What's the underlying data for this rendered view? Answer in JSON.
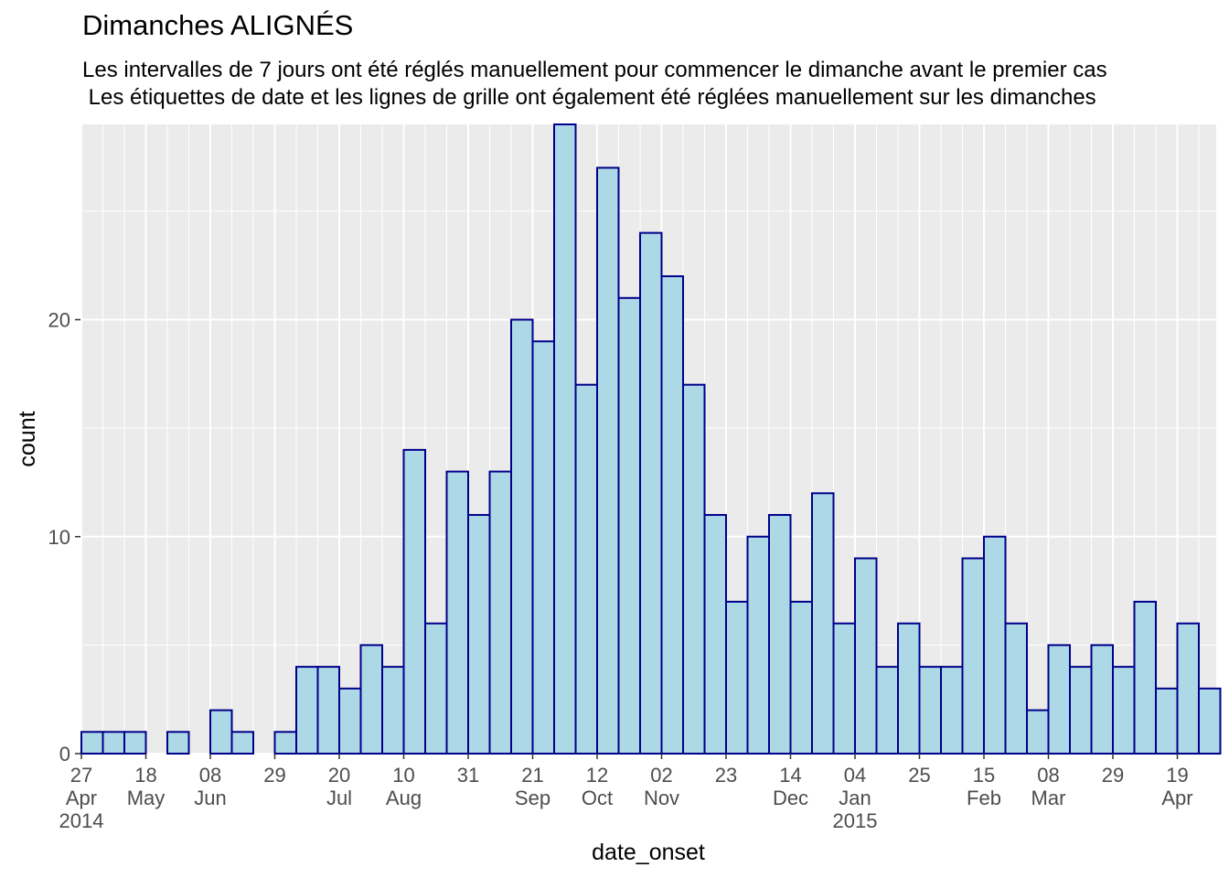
{
  "chart_data": {
    "type": "bar",
    "title": "Dimanches ALIGNÉS",
    "subtitle_lines": [
      "Les intervalles de 7 jours ont été réglés manuellement pour commencer le dimanche avant le premier cas",
      " Les étiquettes de date et les lignes de grille ont également été réglées manuellement sur les dimanches"
    ],
    "xlabel": "date_onset",
    "ylabel": "count",
    "ylim": [
      0,
      29
    ],
    "y_ticks": [
      0,
      10,
      20
    ],
    "grid": true,
    "bar_fill": "#ADD8E6",
    "bar_outline": "#00008B",
    "panel_background": "#EBEBEB",
    "categories": [
      "2014-04-27",
      "2014-05-04",
      "2014-05-11",
      "2014-05-18",
      "2014-05-25",
      "2014-06-01",
      "2014-06-08",
      "2014-06-15",
      "2014-06-22",
      "2014-06-29",
      "2014-07-06",
      "2014-07-13",
      "2014-07-20",
      "2014-07-27",
      "2014-08-03",
      "2014-08-10",
      "2014-08-17",
      "2014-08-24",
      "2014-08-31",
      "2014-09-07",
      "2014-09-14",
      "2014-09-21",
      "2014-09-28",
      "2014-10-05",
      "2014-10-12",
      "2014-10-19",
      "2014-10-26",
      "2014-11-02",
      "2014-11-09",
      "2014-11-16",
      "2014-11-23",
      "2014-11-30",
      "2014-12-07",
      "2014-12-14",
      "2014-12-21",
      "2014-12-28",
      "2015-01-04",
      "2015-01-11",
      "2015-01-18",
      "2015-01-25",
      "2015-02-01",
      "2015-02-08",
      "2015-02-15",
      "2015-02-22",
      "2015-03-01",
      "2015-03-08",
      "2015-03-15",
      "2015-03-22",
      "2015-03-29",
      "2015-04-05",
      "2015-04-12",
      "2015-04-19",
      "2015-04-26"
    ],
    "values": [
      1,
      1,
      1,
      0,
      1,
      0,
      2,
      1,
      0,
      1,
      4,
      4,
      3,
      5,
      4,
      14,
      6,
      13,
      11,
      13,
      20,
      19,
      29,
      17,
      27,
      21,
      24,
      22,
      17,
      11,
      7,
      10,
      11,
      7,
      12,
      6,
      9,
      4,
      6,
      4,
      4,
      9,
      10,
      6,
      2,
      5,
      4,
      5,
      4,
      7,
      3,
      6,
      3
    ],
    "x_tick_labels": [
      {
        "week": 0,
        "lines": [
          "27",
          "Apr",
          "2014"
        ]
      },
      {
        "week": 3,
        "lines": [
          "18",
          "May"
        ]
      },
      {
        "week": 6,
        "lines": [
          "08",
          "Jun"
        ]
      },
      {
        "week": 9,
        "lines": [
          "29"
        ]
      },
      {
        "week": 12,
        "lines": [
          "20",
          "Jul"
        ]
      },
      {
        "week": 15,
        "lines": [
          "10",
          "Aug"
        ]
      },
      {
        "week": 18,
        "lines": [
          "31"
        ]
      },
      {
        "week": 21,
        "lines": [
          "21",
          "Sep"
        ]
      },
      {
        "week": 24,
        "lines": [
          "12",
          "Oct"
        ]
      },
      {
        "week": 27,
        "lines": [
          "02",
          "Nov"
        ]
      },
      {
        "week": 30,
        "lines": [
          "23"
        ]
      },
      {
        "week": 33,
        "lines": [
          "14",
          "Dec"
        ]
      },
      {
        "week": 36,
        "lines": [
          "04",
          "Jan",
          "2015"
        ]
      },
      {
        "week": 39,
        "lines": [
          "25"
        ]
      },
      {
        "week": 42,
        "lines": [
          "15",
          "Feb"
        ]
      },
      {
        "week": 45,
        "lines": [
          "08",
          "Mar"
        ]
      },
      {
        "week": 48,
        "lines": [
          "29"
        ]
      },
      {
        "week": 51,
        "lines": [
          "19",
          "Apr"
        ]
      }
    ]
  }
}
